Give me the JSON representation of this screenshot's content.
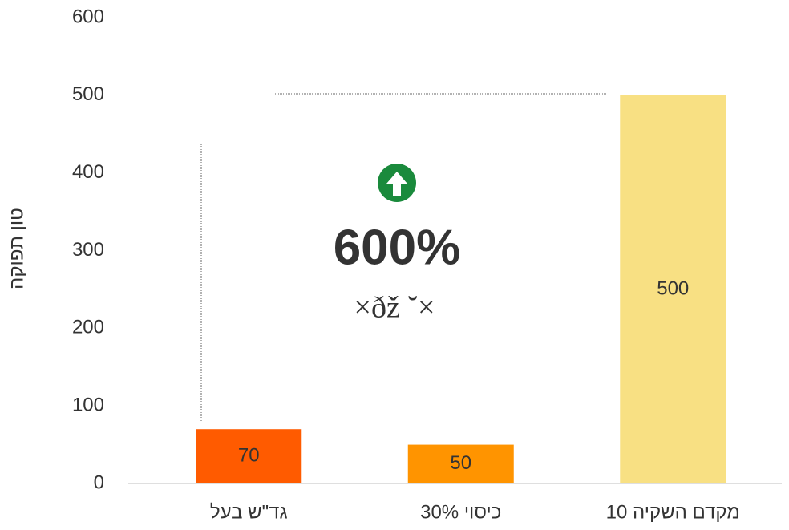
{
  "chart_data": {
    "type": "bar",
    "y_axis_label": "טון תפוקה",
    "categories": [
      "גד\"ש בעל",
      "כיסוי 30%",
      "מקדם השקיה 10"
    ],
    "values": [
      70,
      50,
      500
    ],
    "colors": [
      "#ff5b00",
      "#ff9400",
      "#f8e083"
    ],
    "ylim": [
      0,
      600
    ],
    "yticks": [
      0,
      100,
      200,
      300,
      400,
      500,
      600
    ],
    "grid": false,
    "annotations": [
      "600%",
      "×ðž ˘×"
    ]
  }
}
